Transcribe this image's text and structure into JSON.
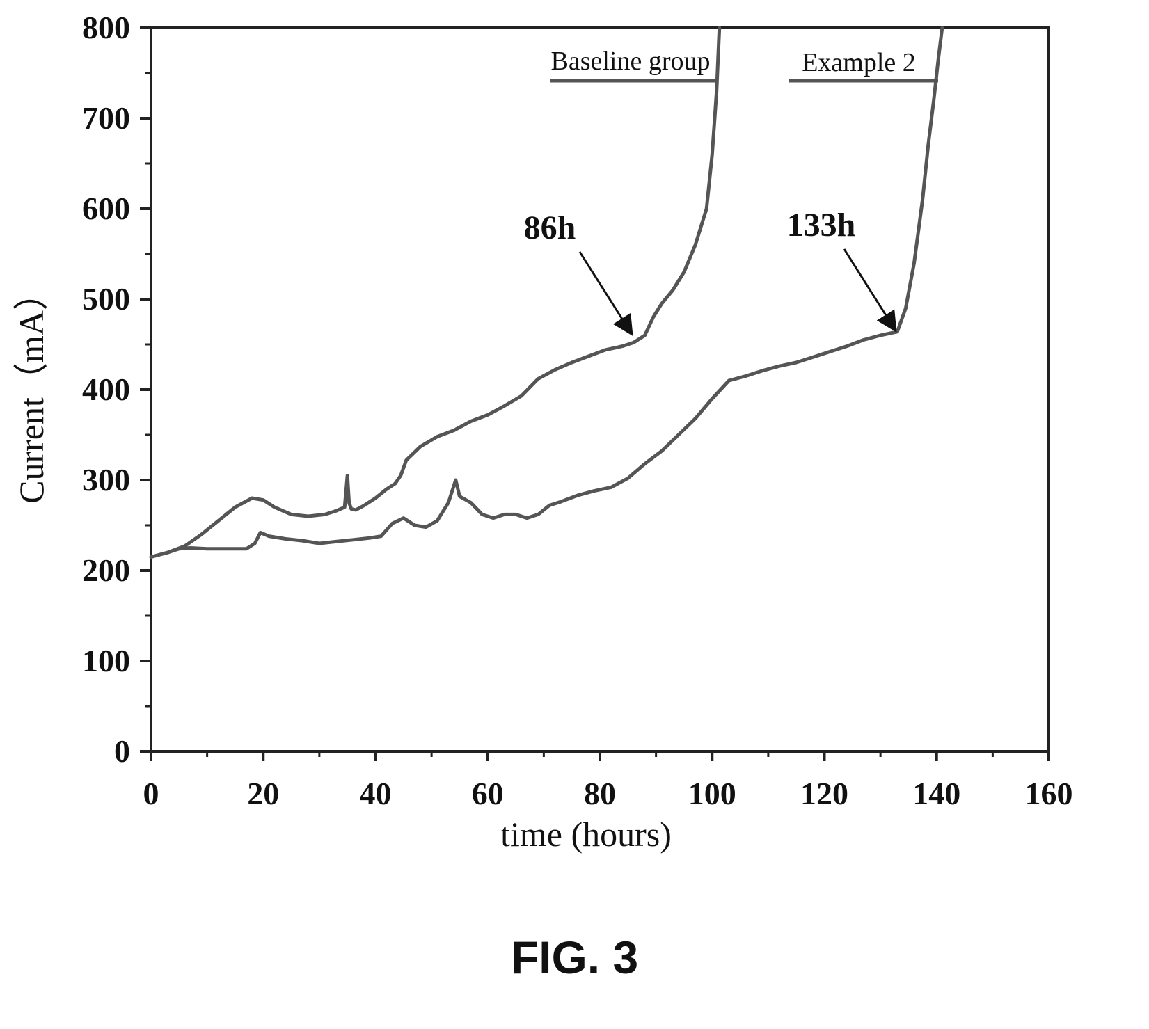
{
  "figure_caption": "FIG. 3",
  "chart_data": {
    "type": "line",
    "xlabel": "time (hours)",
    "ylabel": "Current（mA）",
    "xlim": [
      0,
      160
    ],
    "ylim": [
      0,
      800
    ],
    "xticks": [
      0,
      20,
      40,
      60,
      80,
      100,
      120,
      140,
      160
    ],
    "yticks": [
      0,
      100,
      200,
      300,
      400,
      500,
      600,
      700,
      800
    ],
    "xtick_labels": [
      "0",
      "20",
      "40",
      "60",
      "80",
      "100",
      "120",
      "140",
      "160"
    ],
    "ytick_labels": [
      "0",
      "100",
      "200",
      "300",
      "400",
      "500",
      "600",
      "700",
      "800"
    ],
    "grid": false,
    "legend": "in-plot labels at top",
    "series": [
      {
        "name": "Baseline group",
        "color": "#555555",
        "x": [
          0,
          3,
          6,
          9,
          12,
          15,
          18,
          20,
          22,
          25,
          28,
          31,
          33,
          34.5,
          35,
          35.3,
          35.7,
          36.5,
          38,
          40,
          42,
          43.5,
          44.5,
          45.5,
          48,
          51,
          54,
          57,
          60,
          63,
          66,
          69,
          72,
          75,
          78,
          81,
          84,
          86,
          88,
          89.5,
          91,
          93,
          95,
          97,
          99,
          100,
          100.8,
          101.3
        ],
        "y": [
          215,
          220,
          227,
          240,
          255,
          270,
          280,
          278,
          270,
          262,
          260,
          262,
          266,
          270,
          305,
          275,
          268,
          267,
          272,
          280,
          290,
          296,
          305,
          322,
          337,
          348,
          355,
          365,
          372,
          382,
          393,
          412,
          422,
          430,
          437,
          444,
          448,
          452,
          460,
          480,
          495,
          510,
          530,
          560,
          600,
          660,
          730,
          800
        ]
      },
      {
        "name": "Example 2",
        "color": "#555555",
        "x": [
          0,
          3,
          5,
          7,
          10,
          13,
          17,
          18.5,
          19.5,
          21,
          24,
          27,
          30,
          33,
          36,
          39,
          41,
          43,
          45,
          47,
          49,
          51,
          53,
          54.3,
          55,
          57,
          59,
          61,
          63,
          65,
          67,
          69,
          71,
          73,
          76,
          79,
          82,
          85,
          88,
          91,
          94,
          97,
          100,
          103,
          106,
          109,
          112,
          115,
          118,
          121,
          124,
          127,
          130,
          133,
          134.5,
          136,
          137.5,
          138.5,
          139.5,
          140.3,
          141
        ],
        "y": [
          215,
          220,
          224,
          225,
          224,
          224,
          224,
          230,
          242,
          238,
          235,
          233,
          230,
          232,
          234,
          236,
          238,
          252,
          258,
          250,
          248,
          255,
          275,
          300,
          282,
          275,
          262,
          258,
          262,
          262,
          258,
          262,
          272,
          276,
          283,
          288,
          292,
          302,
          318,
          332,
          350,
          368,
          390,
          410,
          415,
          421,
          426,
          430,
          436,
          442,
          448,
          455,
          460,
          464,
          490,
          540,
          610,
          670,
          720,
          765,
          800
        ]
      }
    ],
    "annotations": [
      {
        "text": "86h",
        "x": 86,
        "y": 460
      },
      {
        "text": "133h",
        "x": 133,
        "y": 464
      }
    ]
  }
}
